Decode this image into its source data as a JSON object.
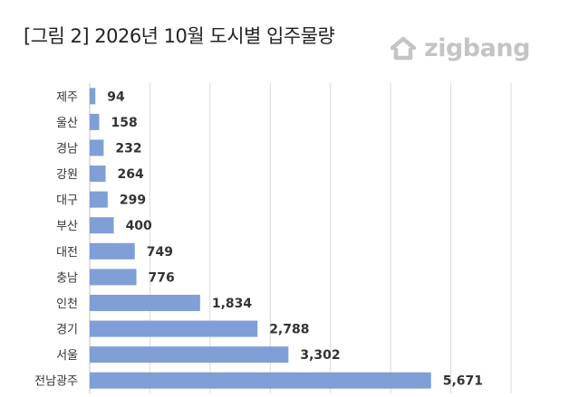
{
  "title": "[그림 2] 2026년 10월 도시별 입주물량",
  "logo": {
    "text": "zigbang",
    "icon": "zigbang-house-icon"
  },
  "colors": {
    "bar": "#7f9fd6",
    "grid": "#d9d9d9",
    "axis": "#bfbfbf",
    "text": "#333333",
    "logo": "#c4c4c4"
  },
  "chart_data": {
    "type": "bar",
    "orientation": "horizontal",
    "categories": [
      "제주",
      "울산",
      "경남",
      "강원",
      "대구",
      "부산",
      "대전",
      "충남",
      "인천",
      "경기",
      "서울",
      "전남광주"
    ],
    "values": [
      94,
      158,
      232,
      264,
      299,
      400,
      749,
      776,
      1834,
      2788,
      3302,
      5671
    ],
    "value_labels": [
      "94",
      "158",
      "232",
      "264",
      "299",
      "400",
      "749",
      "776",
      "1,834",
      "2,788",
      "3,302",
      "5,671"
    ],
    "xlim": [
      0,
      7000
    ],
    "grid": true,
    "legend": "none"
  }
}
